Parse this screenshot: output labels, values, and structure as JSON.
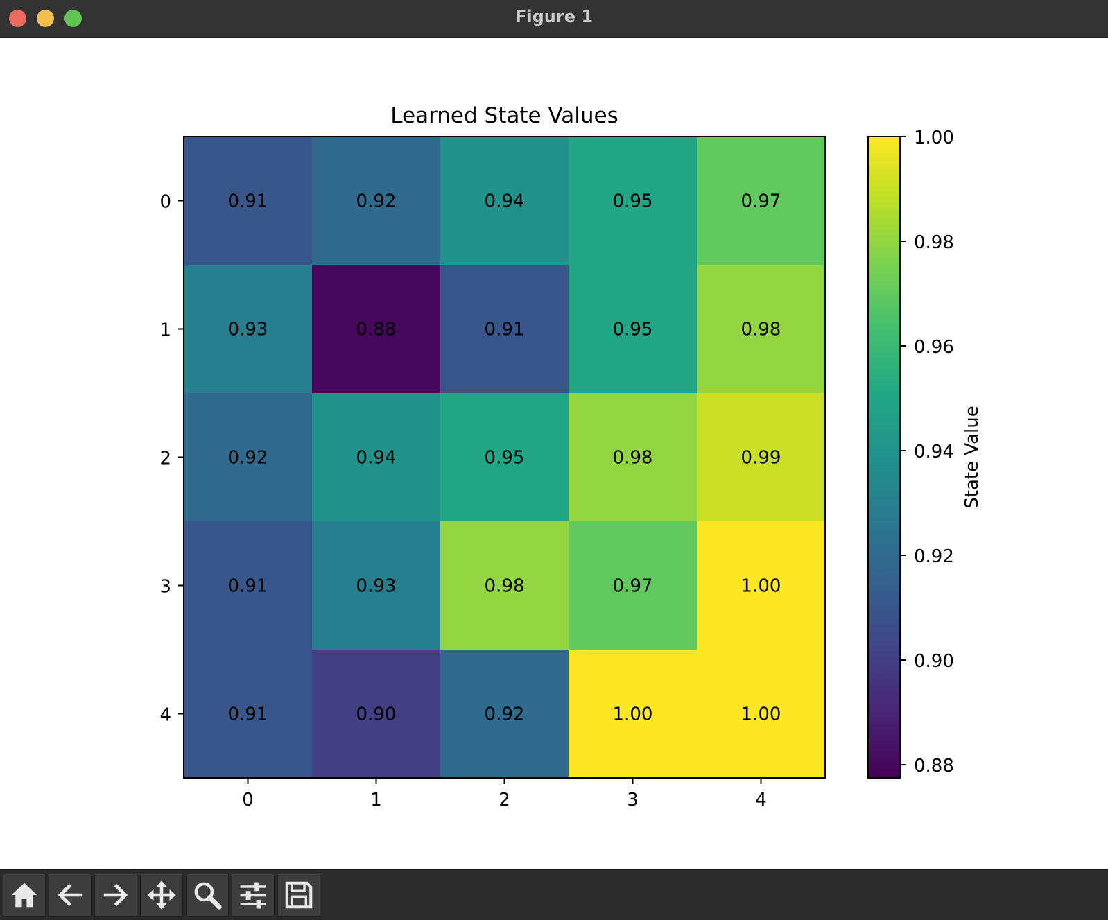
{
  "window": {
    "title": "Figure 1"
  },
  "toolbar": {
    "buttons": [
      {
        "name": "home-button",
        "icon": "home-icon"
      },
      {
        "name": "back-button",
        "icon": "arrow-left-icon"
      },
      {
        "name": "forward-button",
        "icon": "arrow-right-icon"
      },
      {
        "name": "pan-button",
        "icon": "move-icon"
      },
      {
        "name": "zoom-button",
        "icon": "magnifier-icon"
      },
      {
        "name": "configure-subplots-button",
        "icon": "sliders-icon"
      },
      {
        "name": "save-button",
        "icon": "floppy-disk-icon"
      }
    ]
  },
  "chart_data": {
    "type": "heatmap",
    "title": "Learned State Values",
    "x_ticks": [
      "0",
      "1",
      "2",
      "3",
      "4"
    ],
    "y_ticks": [
      "0",
      "1",
      "2",
      "3",
      "4"
    ],
    "values": [
      [
        0.91,
        0.92,
        0.94,
        0.95,
        0.97
      ],
      [
        0.93,
        0.88,
        0.91,
        0.95,
        0.98
      ],
      [
        0.92,
        0.94,
        0.95,
        0.98,
        0.99
      ],
      [
        0.91,
        0.93,
        0.98,
        0.97,
        1.0
      ],
      [
        0.91,
        0.9,
        0.92,
        1.0,
        1.0
      ]
    ],
    "cell_labels": [
      [
        "0.91",
        "0.92",
        "0.94",
        "0.95",
        "0.97"
      ],
      [
        "0.93",
        "0.88",
        "0.91",
        "0.95",
        "0.98"
      ],
      [
        "0.92",
        "0.94",
        "0.95",
        "0.98",
        "0.99"
      ],
      [
        "0.91",
        "0.93",
        "0.98",
        "0.97",
        "1.00"
      ],
      [
        "0.91",
        "0.90",
        "0.92",
        "1.00",
        "1.00"
      ]
    ],
    "colormap": "viridis",
    "colorbar": {
      "label": "State Value",
      "range": [
        0.8775,
        1.0
      ],
      "ticks": [
        0.88,
        0.9,
        0.92,
        0.94,
        0.96,
        0.98,
        1.0
      ],
      "tick_labels": [
        "0.88",
        "0.90",
        "0.92",
        "0.94",
        "0.96",
        "0.98",
        "1.00"
      ]
    }
  }
}
